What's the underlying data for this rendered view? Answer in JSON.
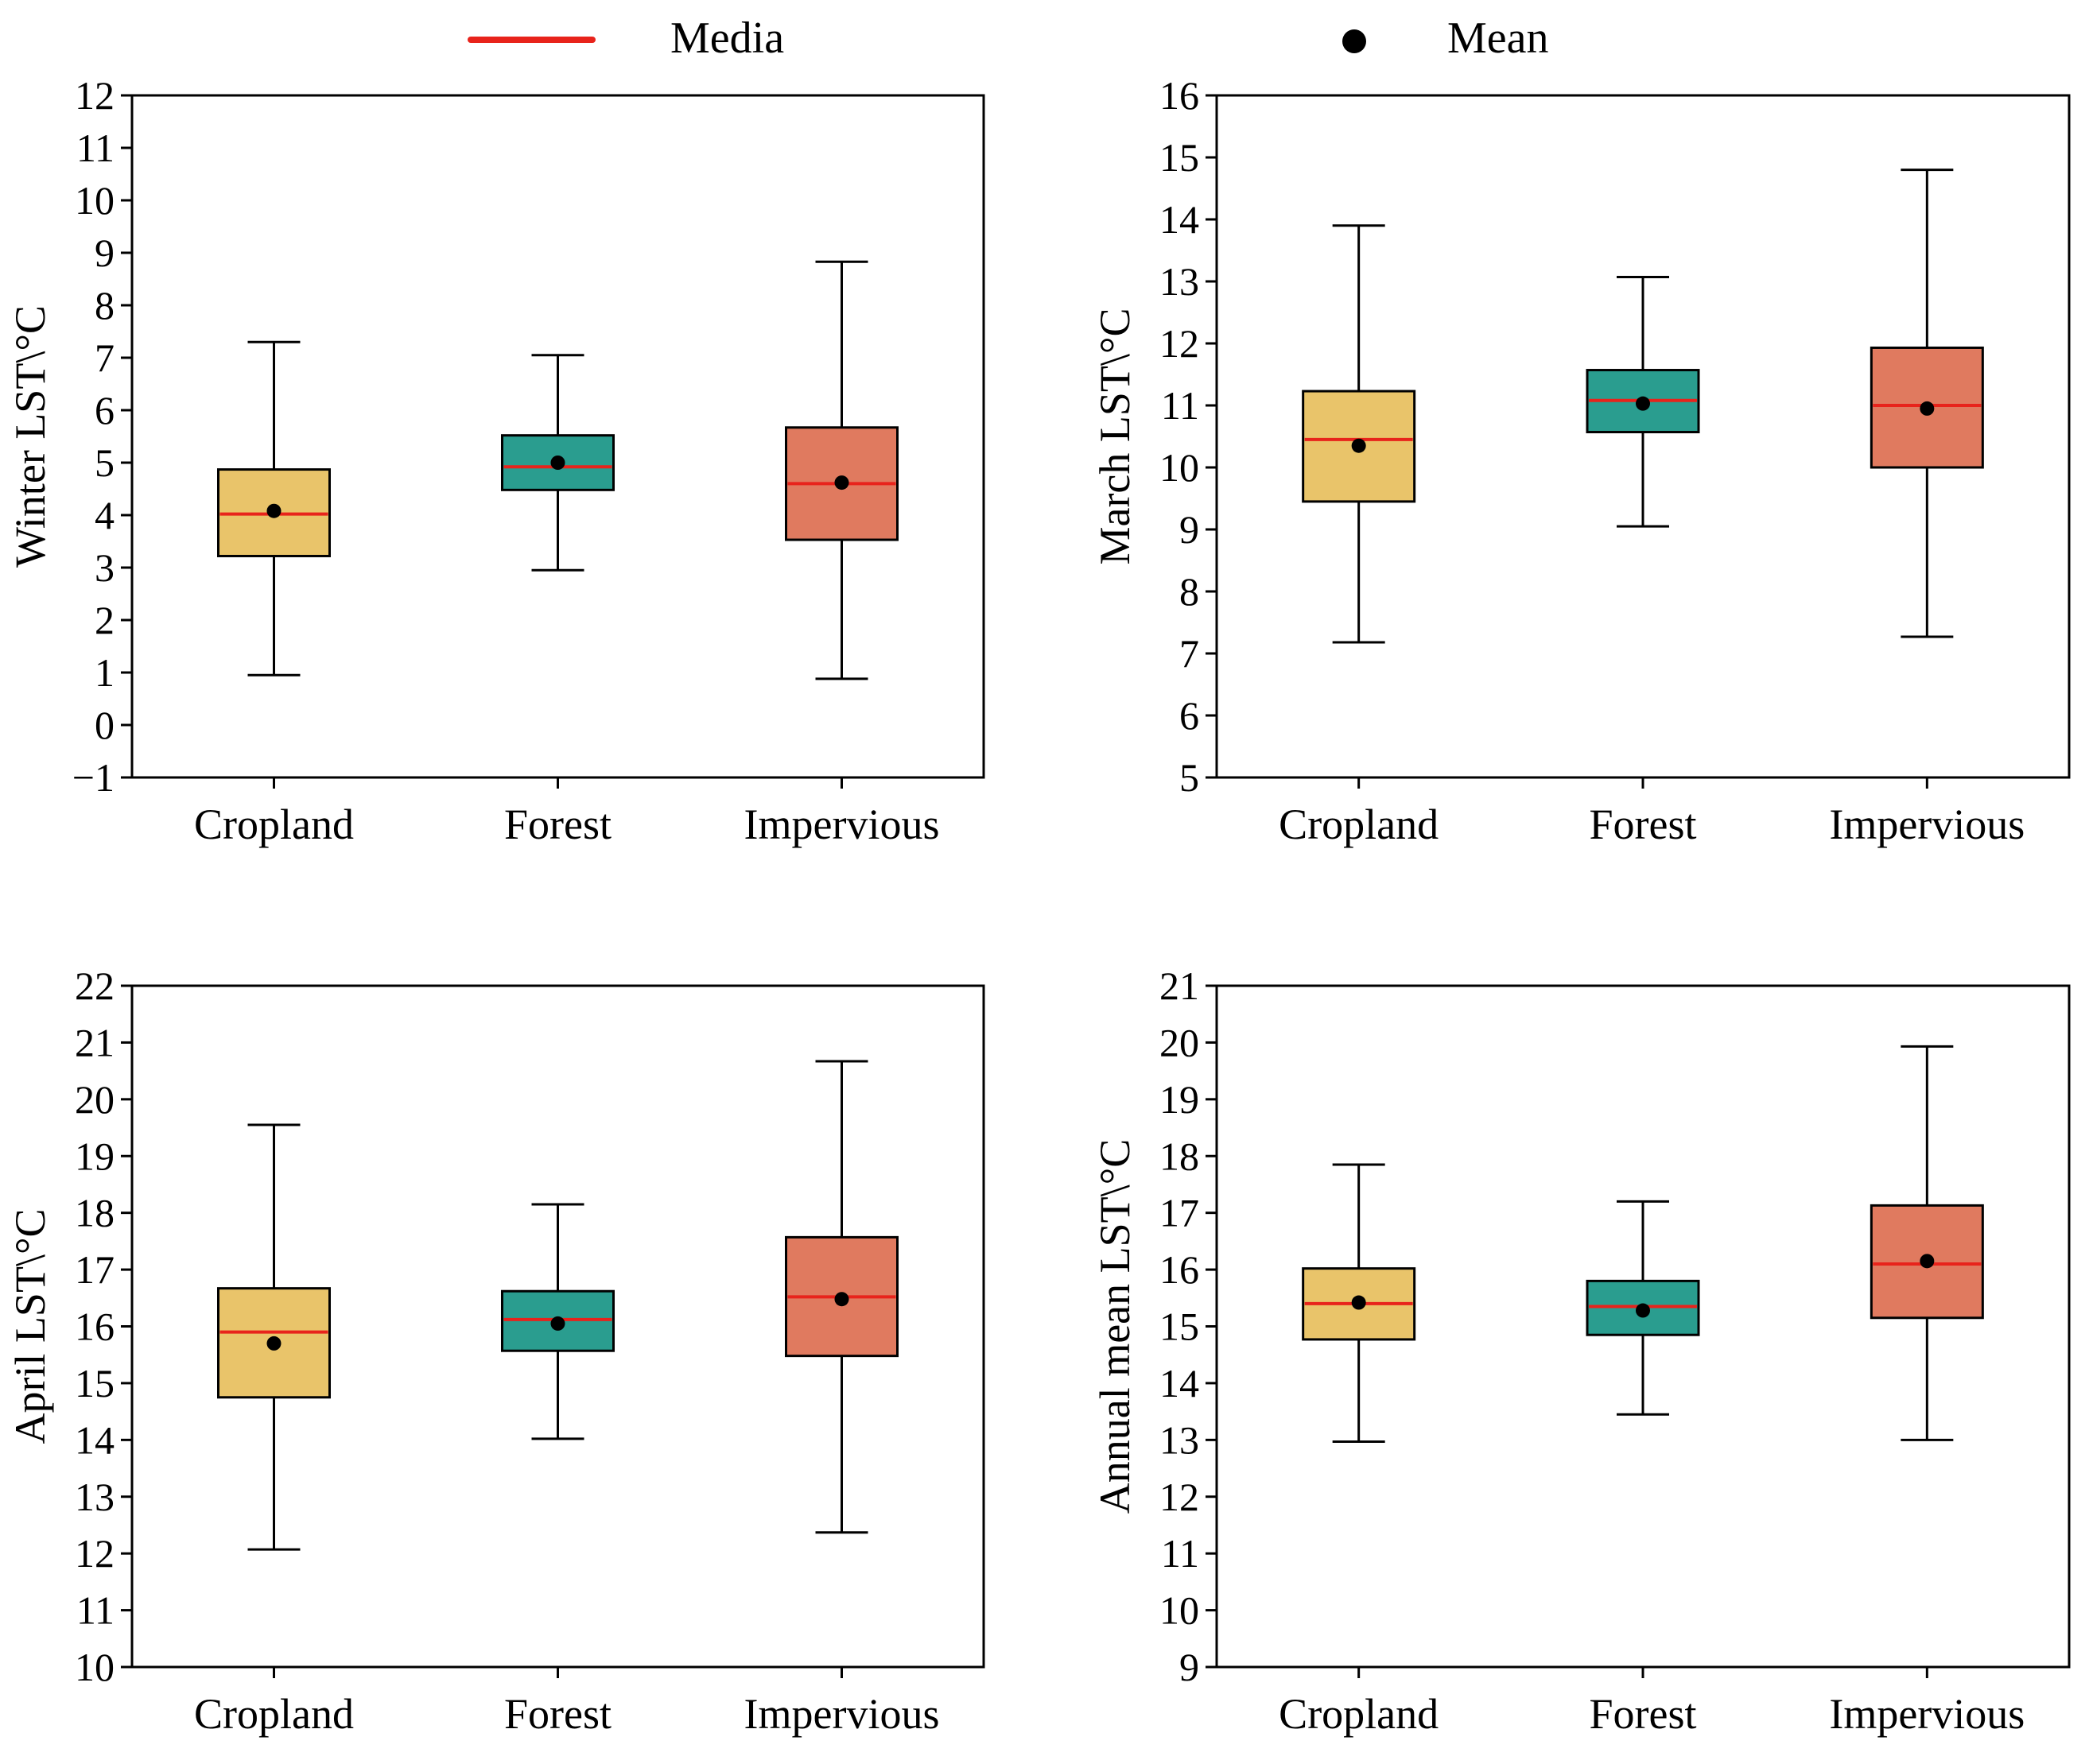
{
  "legend": {
    "median_label": "Media",
    "mean_label": "Mean"
  },
  "colors": {
    "median_line": "#e8231b",
    "mean_marker": "#000000",
    "cropland_fill": "#e9c46a",
    "forest_fill": "#2a9d8f",
    "impervious_fill": "#e07a5f",
    "axis": "#000000"
  },
  "chart_data": [
    {
      "type": "box",
      "ylabel": "Winter LST\\°C",
      "ylim": [
        -1,
        12
      ],
      "yticks": [
        -1,
        0,
        1,
        2,
        3,
        4,
        5,
        6,
        7,
        8,
        9,
        10,
        11,
        12
      ],
      "ytick_labels": [
        "−1",
        "0",
        "1",
        "2",
        "3",
        "4",
        "5",
        "6",
        "7",
        "8",
        "9",
        "10",
        "11",
        "12"
      ],
      "categories": [
        "Cropland",
        "Forest",
        "Impervious"
      ],
      "boxes": [
        {
          "min": 0.95,
          "q1": 3.22,
          "median": 4.02,
          "q3": 4.87,
          "max": 7.3,
          "mean": 4.08
        },
        {
          "min": 2.95,
          "q1": 4.48,
          "median": 4.92,
          "q3": 5.52,
          "max": 7.05,
          "mean": 5.0
        },
        {
          "min": 0.88,
          "q1": 3.53,
          "median": 4.6,
          "q3": 5.67,
          "max": 8.83,
          "mean": 4.62
        }
      ]
    },
    {
      "type": "box",
      "ylabel": "March LST\\°C",
      "ylim": [
        5,
        16
      ],
      "yticks": [
        5,
        6,
        7,
        8,
        9,
        10,
        11,
        12,
        13,
        14,
        15,
        16
      ],
      "ytick_labels": [
        "5",
        "6",
        "7",
        "8",
        "9",
        "10",
        "11",
        "12",
        "13",
        "14",
        "15",
        "16"
      ],
      "categories": [
        "Cropland",
        "Forest",
        "Impervious"
      ],
      "boxes": [
        {
          "min": 7.18,
          "q1": 9.45,
          "median": 10.45,
          "q3": 11.23,
          "max": 13.9,
          "mean": 10.35
        },
        {
          "min": 9.05,
          "q1": 10.57,
          "median": 11.08,
          "q3": 11.57,
          "max": 13.07,
          "mean": 11.03
        },
        {
          "min": 7.27,
          "q1": 10.0,
          "median": 11.0,
          "q3": 11.93,
          "max": 14.8,
          "mean": 10.95
        }
      ]
    },
    {
      "type": "box",
      "ylabel": "April LST\\°C",
      "ylim": [
        10,
        22
      ],
      "yticks": [
        10,
        11,
        12,
        13,
        14,
        15,
        16,
        17,
        18,
        19,
        20,
        21,
        22
      ],
      "ytick_labels": [
        "10",
        "11",
        "12",
        "13",
        "14",
        "15",
        "16",
        "17",
        "18",
        "19",
        "20",
        "21",
        "22"
      ],
      "categories": [
        "Cropland",
        "Forest",
        "Impervious"
      ],
      "boxes": [
        {
          "min": 12.07,
          "q1": 14.75,
          "median": 15.9,
          "q3": 16.67,
          "max": 19.55,
          "mean": 15.7
        },
        {
          "min": 14.02,
          "q1": 15.57,
          "median": 16.12,
          "q3": 16.62,
          "max": 18.15,
          "mean": 16.05
        },
        {
          "min": 12.37,
          "q1": 15.48,
          "median": 16.52,
          "q3": 17.57,
          "max": 20.67,
          "mean": 16.48
        }
      ]
    },
    {
      "type": "box",
      "ylabel": "Annual mean LST\\°C",
      "ylim": [
        9,
        21
      ],
      "yticks": [
        9,
        10,
        11,
        12,
        13,
        14,
        15,
        16,
        17,
        18,
        19,
        20,
        21
      ],
      "ytick_labels": [
        "9",
        "10",
        "11",
        "12",
        "13",
        "14",
        "15",
        "16",
        "17",
        "18",
        "19",
        "20",
        "21"
      ],
      "categories": [
        "Cropland",
        "Forest",
        "Impervious"
      ],
      "boxes": [
        {
          "min": 12.97,
          "q1": 14.77,
          "median": 15.4,
          "q3": 16.02,
          "max": 17.85,
          "mean": 15.42
        },
        {
          "min": 13.45,
          "q1": 14.85,
          "median": 15.35,
          "q3": 15.8,
          "max": 17.2,
          "mean": 15.28
        },
        {
          "min": 13.0,
          "q1": 15.15,
          "median": 16.1,
          "q3": 17.13,
          "max": 19.93,
          "mean": 16.15
        }
      ]
    }
  ]
}
